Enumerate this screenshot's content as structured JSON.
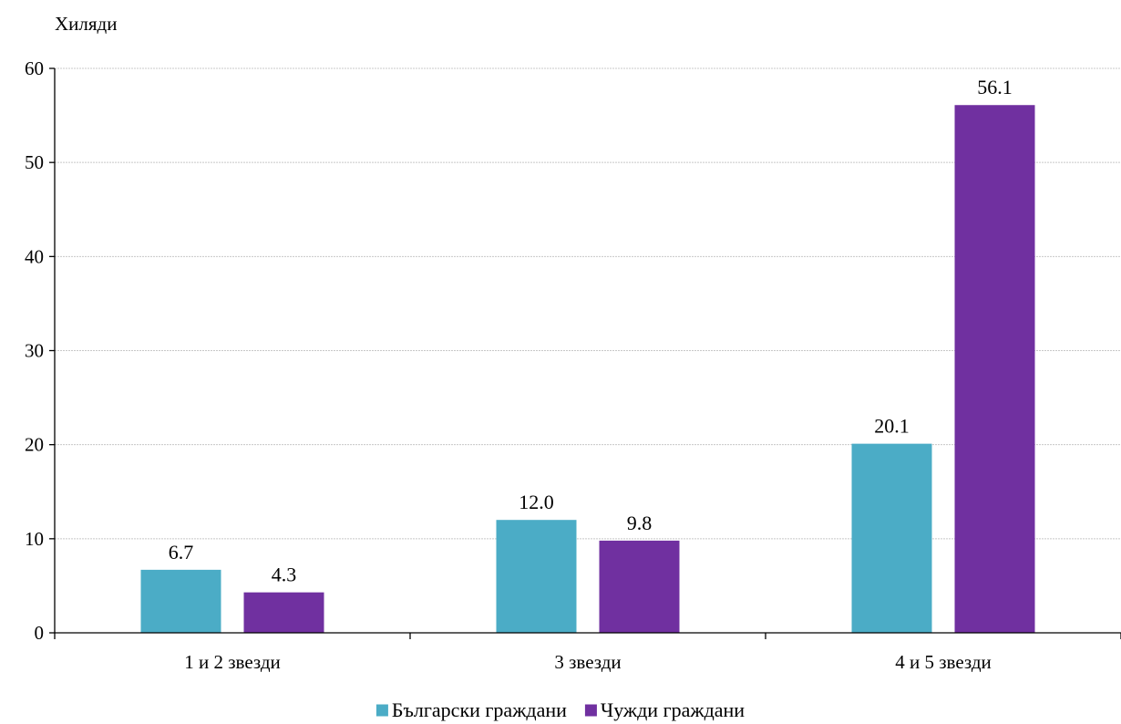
{
  "chart_data": {
    "type": "bar",
    "ylabel": "Хиляди",
    "categories": [
      "1 и 2 звезди",
      "3 звезди",
      "4 и 5 звезди"
    ],
    "series": [
      {
        "name": "Български граждани",
        "values": [
          6.7,
          12.0,
          20.1
        ],
        "labels": [
          "6.7",
          "12.0",
          "20.1"
        ],
        "color": "#4bacc6"
      },
      {
        "name": "Чужди граждани",
        "values": [
          4.3,
          9.8,
          56.1
        ],
        "labels": [
          "4.3",
          "9.8",
          "56.1"
        ],
        "color": "#7030a0"
      }
    ],
    "ylim": [
      0,
      60
    ],
    "yticks": [
      0,
      10,
      20,
      30,
      40,
      50,
      60
    ],
    "grid": true,
    "legend_position": "bottom-center"
  }
}
